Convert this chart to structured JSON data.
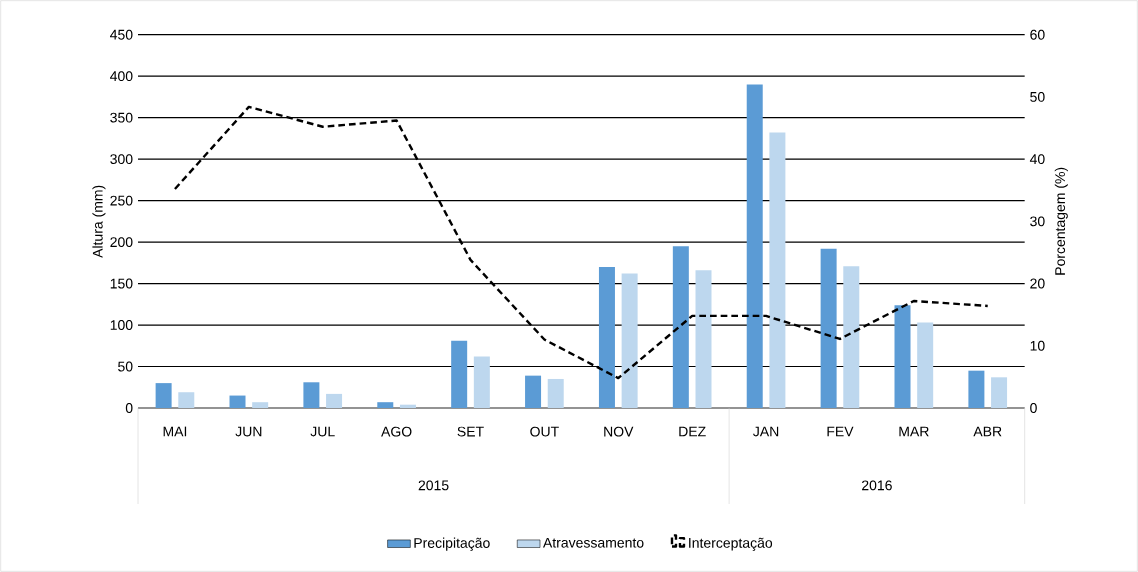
{
  "chart_data": {
    "type": "bar",
    "categories": [
      "MAI",
      "JUN",
      "JUL",
      "AGO",
      "SET",
      "OUT",
      "NOV",
      "DEZ",
      "JAN",
      "FEV",
      "MAR",
      "ABR"
    ],
    "series": [
      {
        "name": "Precipitação",
        "color": "#5b9bd5",
        "values": [
          30,
          15,
          31,
          7,
          81,
          39,
          170,
          195,
          390,
          192,
          124,
          45
        ]
      },
      {
        "name": "Atravessamento",
        "color": "#bdd7ee",
        "values": [
          19,
          7,
          17,
          4,
          62,
          35,
          162,
          166,
          332,
          171,
          103,
          37
        ]
      },
      {
        "name": "Interceptação",
        "color": "#000000",
        "type": "line",
        "axis": "y2",
        "line_style": "dashed",
        "values": [
          35.2,
          48.4,
          45.2,
          46.2,
          23.8,
          11,
          4.8,
          14.8,
          14.8,
          11.1,
          17.2,
          16.4
        ]
      }
    ],
    "ylabel": "Altura (mm)",
    "y2label": "Porcentagem (%)",
    "ylim": [
      0,
      450
    ],
    "yticks": [
      0,
      50,
      100,
      150,
      200,
      250,
      300,
      350,
      400,
      450
    ],
    "y2lim": [
      0,
      60
    ],
    "y2ticks": [
      0,
      10,
      20,
      30,
      40,
      50,
      60
    ],
    "grid": "y",
    "legend": "bottom",
    "annotations": [
      "2015",
      "2016"
    ]
  }
}
